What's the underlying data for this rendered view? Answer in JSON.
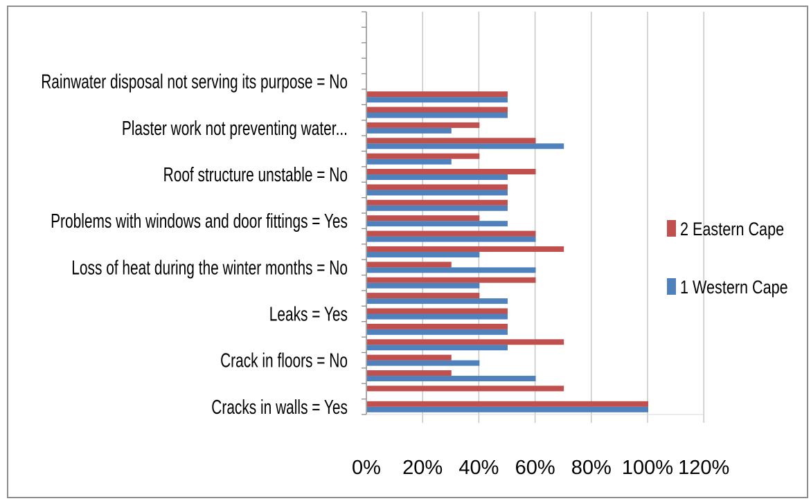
{
  "chart_data": {
    "type": "bar",
    "orientation": "horizontal",
    "categories": [
      "Cracks in walls = Yes",
      "",
      "",
      "Crack in floors = No",
      "",
      "",
      "Leaks = Yes",
      "",
      "",
      "Loss of heat during the winter months = No",
      "",
      "",
      "Problems with windows and door fittings = Yes",
      "",
      "",
      "Roof structure unstable = No",
      "",
      "",
      "Plaster work not preventing water...",
      "",
      "",
      "Rainwater disposal not serving its purpose = No",
      "",
      "",
      "",
      ""
    ],
    "series": [
      {
        "name": "1 Western Cape",
        "color": "#4f81bd",
        "values": [
          100,
          null,
          60,
          40,
          50,
          50,
          50,
          50,
          40,
          60,
          40,
          60,
          50,
          50,
          50,
          50,
          30,
          70,
          30,
          50,
          50,
          null,
          null,
          null,
          null,
          null
        ]
      },
      {
        "name": "2 Eastern Cape",
        "color": "#c0504d",
        "values": [
          100,
          70,
          30,
          30,
          70,
          50,
          50,
          40,
          60,
          30,
          70,
          60,
          40,
          50,
          50,
          60,
          40,
          60,
          40,
          50,
          50,
          null,
          null,
          null,
          null,
          null
        ]
      }
    ],
    "xaxis_ticks": [
      "0%",
      "20%",
      "40%",
      "60%",
      "80%",
      "100%",
      "120%"
    ],
    "xlim": [
      0,
      120
    ],
    "grid": true,
    "legend_position": "right",
    "title": "",
    "xlabel": "",
    "ylabel": ""
  }
}
